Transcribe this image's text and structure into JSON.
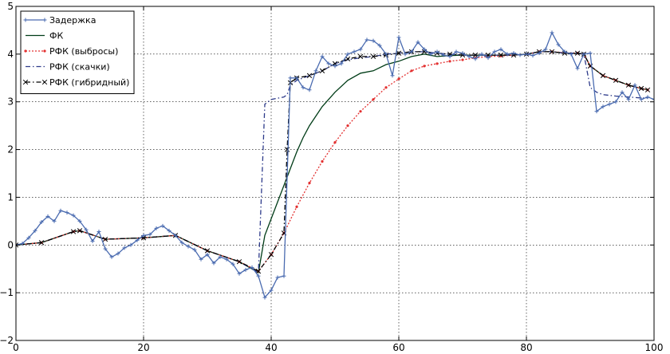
{
  "chart_data": {
    "type": "line",
    "title": "",
    "xlabel": "",
    "ylabel": "",
    "xlim": [
      0,
      100
    ],
    "ylim": [
      -2,
      5
    ],
    "grid": true,
    "legend_position": "top-left",
    "x_ticks": [
      "0",
      "20",
      "40",
      "60",
      "80",
      "100"
    ],
    "y_ticks": [
      "−2",
      "−1",
      "0",
      "1",
      "2",
      "3",
      "4",
      "5"
    ],
    "series": [
      {
        "name": "Задержка",
        "color": "#4a6bb0",
        "style": "solid-marker",
        "values": [
          0.0,
          0.03,
          0.15,
          0.3,
          0.48,
          0.6,
          0.5,
          0.72,
          0.68,
          0.62,
          0.5,
          0.32,
          0.08,
          0.28,
          -0.08,
          -0.25,
          -0.18,
          -0.06,
          0.0,
          0.1,
          0.2,
          0.22,
          0.35,
          0.4,
          0.3,
          0.2,
          0.05,
          -0.03,
          -0.1,
          -0.3,
          -0.2,
          -0.38,
          -0.25,
          -0.3,
          -0.4,
          -0.6,
          -0.52,
          -0.47,
          -0.65,
          -1.1,
          -0.95,
          -0.68,
          -0.65,
          3.5,
          3.5,
          3.3,
          3.25,
          3.65,
          3.95,
          3.8,
          3.75,
          3.8,
          4.0,
          4.05,
          4.1,
          4.3,
          4.28,
          4.18,
          4.0,
          3.55,
          4.35,
          4.0,
          4.05,
          4.25,
          4.1,
          4.0,
          4.05,
          3.98,
          3.95,
          4.05,
          4.02,
          3.95,
          3.9,
          4.0,
          3.92,
          4.05,
          4.1,
          4.0,
          4.02,
          3.98,
          4.0,
          3.97,
          4.02,
          4.1,
          4.45,
          4.2,
          4.05,
          4.0,
          3.7,
          4.0,
          4.02,
          2.8,
          2.9,
          2.95,
          3.0,
          3.2,
          3.05,
          3.35,
          3.05,
          3.1,
          3.05
        ],
        "x_start": 0,
        "x_step": 1
      },
      {
        "name": "ФК",
        "color": "#003c17",
        "style": "solid",
        "x": [
          0,
          4,
          9,
          10,
          14,
          20,
          25,
          30,
          35,
          38,
          39,
          40,
          41,
          42,
          43,
          44,
          45,
          46,
          48,
          50,
          52,
          54,
          56,
          58,
          60,
          62,
          64,
          66,
          68,
          70,
          72,
          74,
          76,
          78,
          80,
          82,
          84,
          86,
          88,
          89,
          90,
          92,
          94,
          96,
          98,
          99
        ],
        "values": [
          0.0,
          0.05,
          0.28,
          0.3,
          0.12,
          0.15,
          0.2,
          -0.12,
          -0.35,
          -0.58,
          0.2,
          0.55,
          0.9,
          1.25,
          1.6,
          1.95,
          2.25,
          2.5,
          2.9,
          3.2,
          3.45,
          3.6,
          3.65,
          3.78,
          3.85,
          3.95,
          4.0,
          3.95,
          3.97,
          3.98,
          3.98,
          3.98,
          3.98,
          3.98,
          4.0,
          4.05,
          4.05,
          4.02,
          4.02,
          4.0,
          3.75,
          3.55,
          3.45,
          3.35,
          3.28,
          3.25
        ]
      },
      {
        "name": "РФК (выбросы)",
        "color": "#e33030",
        "style": "dotted-marker",
        "x": [
          0,
          4,
          9,
          10,
          14,
          20,
          25,
          30,
          35,
          38,
          40,
          42,
          44,
          46,
          48,
          50,
          52,
          54,
          56,
          58,
          60,
          62,
          64,
          66,
          68,
          70,
          72,
          74,
          76,
          78,
          80,
          82,
          84,
          86,
          88,
          89,
          90,
          92,
          94,
          96,
          98,
          99
        ],
        "values": [
          0.0,
          0.05,
          0.28,
          0.3,
          0.12,
          0.15,
          0.2,
          -0.12,
          -0.35,
          -0.55,
          -0.2,
          0.25,
          0.8,
          1.3,
          1.75,
          2.15,
          2.5,
          2.8,
          3.05,
          3.3,
          3.48,
          3.65,
          3.75,
          3.8,
          3.85,
          3.88,
          3.92,
          3.95,
          3.96,
          3.98,
          4.0,
          4.05,
          4.05,
          4.03,
          4.02,
          4.0,
          3.75,
          3.55,
          3.45,
          3.35,
          3.28,
          3.25
        ]
      },
      {
        "name": "РФК (скачки)",
        "color": "#2d3a8a",
        "style": "dashdot",
        "x": [
          0,
          4,
          9,
          10,
          14,
          20,
          25,
          30,
          35,
          38,
          39,
          40,
          42,
          42.5,
          43,
          44,
          46,
          48,
          50,
          52,
          54,
          56,
          58,
          60,
          62,
          64,
          66,
          68,
          70,
          72,
          74,
          76,
          78,
          80,
          82,
          84,
          86,
          88,
          89,
          90,
          91,
          92,
          94,
          96,
          98,
          99
        ],
        "values": [
          0.0,
          0.05,
          0.28,
          0.3,
          0.12,
          0.15,
          0.2,
          -0.12,
          -0.35,
          -0.58,
          2.95,
          3.05,
          3.1,
          3.15,
          3.35,
          3.45,
          3.55,
          3.65,
          3.8,
          3.88,
          3.92,
          3.95,
          4.0,
          4.02,
          4.05,
          4.05,
          4.02,
          4.0,
          3.98,
          3.98,
          3.98,
          3.98,
          3.98,
          4.0,
          4.05,
          4.05,
          4.02,
          4.02,
          4.0,
          3.3,
          3.2,
          3.15,
          3.12,
          3.1,
          3.08,
          3.08
        ]
      },
      {
        "name": "РФК (гибридный)",
        "color": "#000000",
        "style": "dashdot-marker",
        "x": [
          0,
          4,
          9,
          10,
          14,
          20,
          25,
          30,
          35,
          38,
          40,
          42,
          42.5,
          43,
          44,
          46,
          48,
          50,
          52,
          54,
          56,
          58,
          60,
          62,
          64,
          66,
          68,
          70,
          72,
          74,
          76,
          78,
          80,
          82,
          84,
          86,
          88,
          89,
          90,
          92,
          94,
          96,
          98,
          99
        ],
        "values": [
          0.0,
          0.05,
          0.28,
          0.3,
          0.12,
          0.15,
          0.2,
          -0.12,
          -0.35,
          -0.55,
          -0.2,
          0.25,
          2.0,
          3.4,
          3.5,
          3.55,
          3.65,
          3.8,
          3.9,
          3.95,
          3.95,
          3.98,
          4.02,
          4.05,
          4.05,
          4.02,
          4.0,
          3.98,
          3.98,
          3.98,
          3.98,
          3.98,
          4.0,
          4.05,
          4.05,
          4.02,
          4.02,
          4.0,
          3.75,
          3.55,
          3.45,
          3.35,
          3.28,
          3.25
        ]
      }
    ]
  }
}
